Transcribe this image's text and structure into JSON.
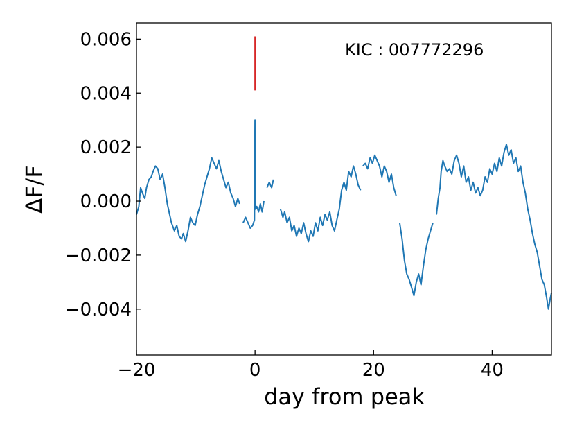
{
  "chart_data": {
    "type": "line",
    "xlabel": "day from peak",
    "ylabel": "ΔF/F",
    "xlim": [
      -20,
      50
    ],
    "ylim": [
      -0.0057,
      0.0066
    ],
    "xticks": [
      -20,
      0,
      20,
      40
    ],
    "xtick_labels": [
      "−20",
      "0",
      "20",
      "40"
    ],
    "yticks": [
      -0.004,
      -0.002,
      0.0,
      0.002,
      0.004,
      0.006
    ],
    "ytick_labels": [
      "−0.004",
      "−0.002",
      "0.000",
      "0.002",
      "0.004",
      "0.006"
    ],
    "grid": false,
    "annotation": "KIC : 007772296",
    "colors": {
      "series": "#1f77b4",
      "marker": "#d62728"
    },
    "flare_marker": {
      "x": 0.0,
      "y_start": 0.0041,
      "y_end": 0.0061
    },
    "series": [
      {
        "segments": [
          [
            [
              -20.0,
              -0.0005
            ],
            [
              -19.6,
              -0.0002
            ],
            [
              -19.3,
              0.0005
            ],
            [
              -19.0,
              0.0003
            ],
            [
              -18.6,
              0.0001
            ],
            [
              -18.3,
              0.0005
            ],
            [
              -17.9,
              0.0008
            ],
            [
              -17.5,
              0.0009
            ],
            [
              -17.2,
              0.0011
            ],
            [
              -16.8,
              0.0013
            ],
            [
              -16.4,
              0.0012
            ],
            [
              -16.0,
              0.0008
            ],
            [
              -15.6,
              0.001
            ],
            [
              -15.2,
              0.0005
            ],
            [
              -14.8,
              -0.0001
            ],
            [
              -14.4,
              -0.0005
            ],
            [
              -14.1,
              -0.0008
            ],
            [
              -13.6,
              -0.0011
            ],
            [
              -13.2,
              -0.0009
            ],
            [
              -12.8,
              -0.0013
            ],
            [
              -12.4,
              -0.0014
            ],
            [
              -12.1,
              -0.0012
            ],
            [
              -11.7,
              -0.0015
            ],
            [
              -11.3,
              -0.0011
            ],
            [
              -10.9,
              -0.0006
            ],
            [
              -10.5,
              -0.0008
            ],
            [
              -10.1,
              -0.0009
            ],
            [
              -9.7,
              -0.0005
            ],
            [
              -9.3,
              -0.0002
            ],
            [
              -8.9,
              0.0002
            ],
            [
              -8.5,
              0.0006
            ],
            [
              -8.1,
              0.0009
            ],
            [
              -7.7,
              0.0012
            ],
            [
              -7.3,
              0.0016
            ],
            [
              -6.9,
              0.0014
            ],
            [
              -6.5,
              0.0012
            ],
            [
              -6.1,
              0.0015
            ],
            [
              -5.7,
              0.0011
            ],
            [
              -5.3,
              0.0008
            ],
            [
              -4.9,
              0.0005
            ],
            [
              -4.5,
              0.0007
            ],
            [
              -4.1,
              0.0003
            ],
            [
              -3.7,
              0.0001
            ],
            [
              -3.3,
              -0.0002
            ],
            [
              -2.9,
              0.0001
            ],
            [
              -2.6,
              -0.0001
            ]
          ],
          [
            [
              -2.0,
              -0.0008
            ],
            [
              -1.6,
              -0.0006
            ],
            [
              -1.2,
              -0.0008
            ],
            [
              -0.8,
              -0.001
            ],
            [
              -0.4,
              -0.0009
            ],
            [
              -0.1,
              -0.0007
            ],
            [
              0.0,
              0.003
            ],
            [
              0.1,
              -0.0003
            ],
            [
              0.3,
              -0.0002
            ],
            [
              0.6,
              -0.0004
            ],
            [
              0.9,
              -0.0001
            ],
            [
              1.2,
              -0.0004
            ],
            [
              1.5,
              0.0
            ]
          ],
          [
            [
              2.0,
              0.0005
            ],
            [
              2.4,
              0.0007
            ],
            [
              2.8,
              0.0005
            ],
            [
              3.1,
              0.0008
            ]
          ],
          [
            [
              4.3,
              -0.0003
            ],
            [
              4.7,
              -0.0006
            ],
            [
              5.0,
              -0.0004
            ],
            [
              5.4,
              -0.0008
            ],
            [
              5.8,
              -0.0006
            ],
            [
              6.2,
              -0.0011
            ],
            [
              6.6,
              -0.0009
            ],
            [
              7.0,
              -0.0013
            ],
            [
              7.4,
              -0.001
            ],
            [
              7.8,
              -0.0012
            ],
            [
              8.2,
              -0.0008
            ],
            [
              8.6,
              -0.0012
            ],
            [
              9.0,
              -0.0015
            ],
            [
              9.4,
              -0.0011
            ],
            [
              9.8,
              -0.0013
            ],
            [
              10.2,
              -0.0008
            ],
            [
              10.6,
              -0.0011
            ],
            [
              11.0,
              -0.0006
            ],
            [
              11.4,
              -0.0009
            ],
            [
              11.8,
              -0.0005
            ],
            [
              12.2,
              -0.0007
            ],
            [
              12.6,
              -0.0004
            ],
            [
              13.0,
              -0.0009
            ],
            [
              13.4,
              -0.0011
            ],
            [
              13.8,
              -0.0007
            ],
            [
              14.2,
              -0.0003
            ],
            [
              14.6,
              0.0004
            ],
            [
              15.0,
              0.0007
            ],
            [
              15.4,
              0.0004
            ],
            [
              15.8,
              0.0011
            ],
            [
              16.2,
              0.0009
            ],
            [
              16.6,
              0.0013
            ],
            [
              17.0,
              0.001
            ],
            [
              17.4,
              0.0006
            ],
            [
              17.8,
              0.0004
            ]
          ],
          [
            [
              18.2,
              0.0013
            ],
            [
              18.6,
              0.0014
            ],
            [
              19.0,
              0.0012
            ],
            [
              19.4,
              0.0016
            ],
            [
              19.8,
              0.0014
            ],
            [
              20.2,
              0.0017
            ],
            [
              20.6,
              0.0015
            ],
            [
              21.0,
              0.0013
            ],
            [
              21.4,
              0.0009
            ],
            [
              21.8,
              0.0013
            ],
            [
              22.2,
              0.0011
            ],
            [
              22.6,
              0.0007
            ],
            [
              23.0,
              0.001
            ],
            [
              23.4,
              0.0005
            ],
            [
              23.8,
              0.0002
            ]
          ],
          [
            [
              24.4,
              -0.0008
            ],
            [
              24.8,
              -0.0014
            ],
            [
              25.2,
              -0.0022
            ],
            [
              25.6,
              -0.0027
            ],
            [
              26.0,
              -0.0029
            ],
            [
              26.4,
              -0.0032
            ],
            [
              26.8,
              -0.0035
            ],
            [
              27.2,
              -0.003
            ],
            [
              27.6,
              -0.0027
            ],
            [
              28.0,
              -0.0031
            ],
            [
              28.4,
              -0.0024
            ],
            [
              28.8,
              -0.0018
            ],
            [
              29.2,
              -0.0014
            ],
            [
              29.6,
              -0.0011
            ],
            [
              30.0,
              -0.0008
            ]
          ],
          [
            [
              30.6,
              -0.0005
            ],
            [
              30.9,
              0.0001
            ],
            [
              31.2,
              0.0005
            ],
            [
              31.4,
              0.0011
            ],
            [
              31.7,
              0.0015
            ],
            [
              32.0,
              0.0013
            ],
            [
              32.4,
              0.0011
            ],
            [
              32.8,
              0.0012
            ],
            [
              33.2,
              0.001
            ],
            [
              33.6,
              0.0015
            ],
            [
              34.0,
              0.0017
            ],
            [
              34.4,
              0.0014
            ],
            [
              34.8,
              0.0009
            ],
            [
              35.2,
              0.0013
            ],
            [
              35.6,
              0.0007
            ],
            [
              36.0,
              0.0009
            ],
            [
              36.4,
              0.0004
            ],
            [
              36.8,
              0.0007
            ],
            [
              37.2,
              0.0003
            ],
            [
              37.6,
              0.0005
            ],
            [
              38.0,
              0.0002
            ],
            [
              38.4,
              0.0004
            ],
            [
              38.8,
              0.0009
            ],
            [
              39.2,
              0.0007
            ],
            [
              39.6,
              0.0012
            ],
            [
              40.0,
              0.001
            ],
            [
              40.4,
              0.0014
            ],
            [
              40.8,
              0.0011
            ],
            [
              41.2,
              0.0016
            ],
            [
              41.6,
              0.0013
            ],
            [
              42.0,
              0.0018
            ],
            [
              42.4,
              0.0021
            ],
            [
              42.8,
              0.0017
            ],
            [
              43.2,
              0.0019
            ],
            [
              43.6,
              0.0014
            ],
            [
              44.0,
              0.0016
            ],
            [
              44.4,
              0.0011
            ],
            [
              44.8,
              0.0013
            ],
            [
              45.2,
              0.0007
            ],
            [
              45.6,
              0.0003
            ],
            [
              46.0,
              -0.0003
            ],
            [
              46.4,
              -0.0007
            ],
            [
              46.8,
              -0.0012
            ],
            [
              47.2,
              -0.0016
            ],
            [
              47.6,
              -0.0019
            ],
            [
              48.0,
              -0.0024
            ],
            [
              48.4,
              -0.0029
            ],
            [
              48.8,
              -0.0031
            ],
            [
              49.2,
              -0.0036
            ],
            [
              49.5,
              -0.004
            ],
            [
              49.8,
              -0.0036
            ],
            [
              50.0,
              -0.0034
            ]
          ]
        ]
      }
    ]
  }
}
